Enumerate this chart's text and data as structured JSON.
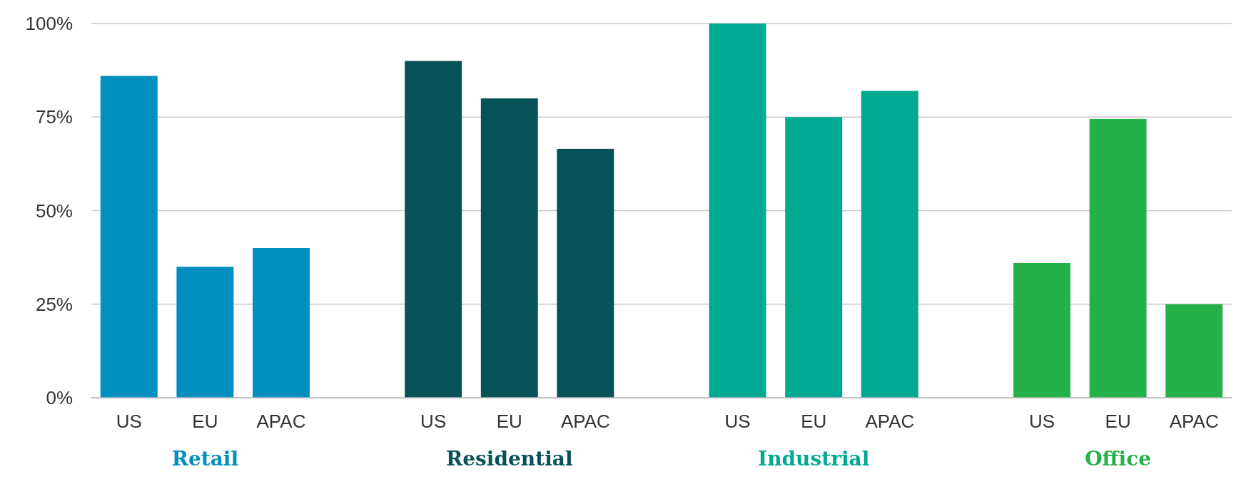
{
  "chart_data": {
    "type": "bar",
    "categories": [
      "US",
      "EU",
      "APAC",
      null,
      "US",
      "EU",
      "APAC",
      null,
      "US",
      "EU",
      "APAC",
      null,
      "US",
      "EU",
      "APAC"
    ],
    "series": [
      {
        "name": "Retail",
        "color": "#008fbe",
        "values": [
          86,
          35,
          40,
          null,
          null,
          null,
          null,
          null,
          null,
          null,
          null,
          null,
          null,
          null,
          null
        ]
      },
      {
        "name": "Residential",
        "color": "#075257",
        "values": [
          null,
          null,
          null,
          null,
          90,
          80,
          66.5,
          null,
          null,
          null,
          null,
          null,
          null,
          null,
          null
        ]
      },
      {
        "name": "Industrial",
        "color": "#00aa92",
        "values": [
          null,
          null,
          null,
          null,
          null,
          null,
          null,
          null,
          100,
          75,
          82,
          null,
          null,
          null,
          null
        ]
      },
      {
        "name": "Office",
        "color": "#25b14a",
        "values": [
          null,
          null,
          null,
          null,
          null,
          null,
          null,
          null,
          null,
          null,
          null,
          null,
          36,
          74.5,
          25
        ]
      }
    ],
    "ylim": [
      0,
      100
    ],
    "yticks": [
      {
        "value": 0,
        "label": "0%"
      },
      {
        "value": 25,
        "label": "25%"
      },
      {
        "value": 50,
        "label": "50%"
      },
      {
        "value": 75,
        "label": "75%"
      },
      {
        "value": 100,
        "label": "100%"
      }
    ],
    "grid": "y"
  }
}
